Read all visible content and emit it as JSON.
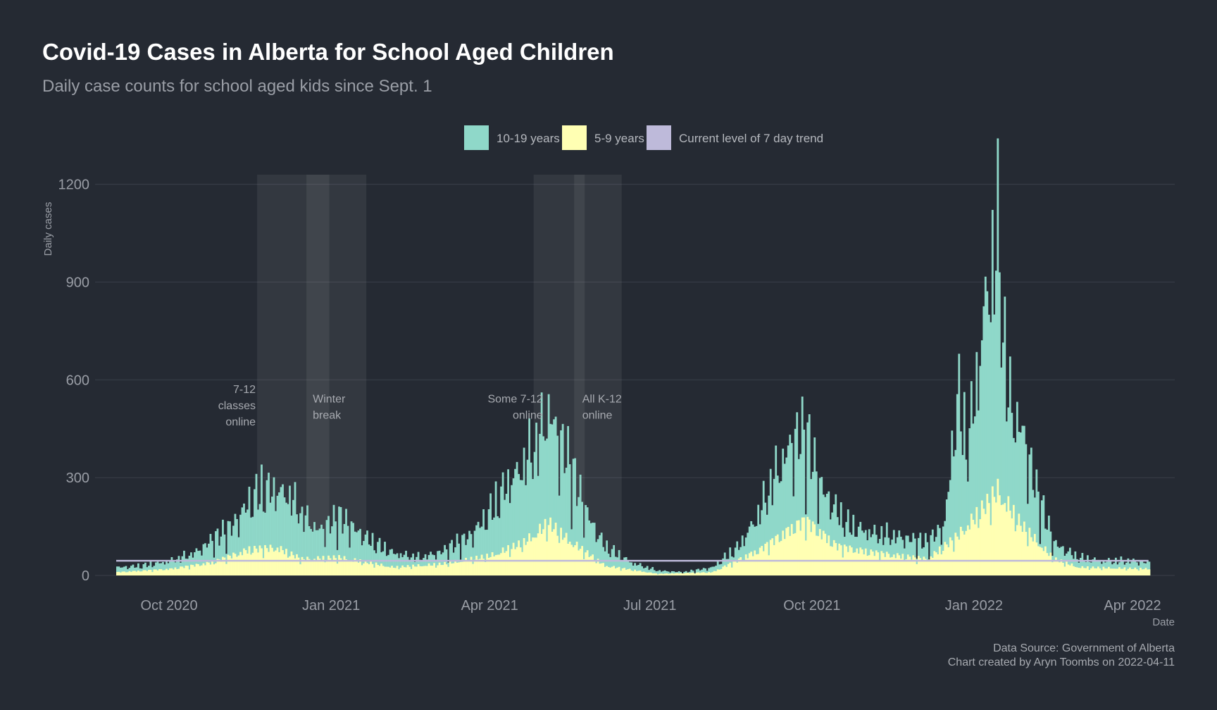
{
  "chart_data": {
    "type": "bar",
    "title": "Covid-19 Cases in Alberta for School Aged Children",
    "subtitle": "Daily case counts for school aged kids since Sept. 1",
    "xlabel": "Date",
    "ylabel": "Daily cases",
    "x_range": [
      "2020-08-20",
      "2022-04-25"
    ],
    "ylim": [
      0,
      1225
    ],
    "y_ticks": [
      0,
      300,
      600,
      900,
      1200
    ],
    "x_ticks": [
      {
        "date": "2020-10-01",
        "label": "Oct 2020"
      },
      {
        "date": "2021-01-01",
        "label": "Jan 2021"
      },
      {
        "date": "2021-04-01",
        "label": "Apr 2021"
      },
      {
        "date": "2021-07-01",
        "label": "Jul 2021"
      },
      {
        "date": "2021-10-01",
        "label": "Oct 2021"
      },
      {
        "date": "2022-01-01",
        "label": "Jan 2022"
      },
      {
        "date": "2022-04-01",
        "label": "Apr 2022"
      }
    ],
    "grid": true,
    "legend_position": "top",
    "series": [
      {
        "name": "10-19 years",
        "color": "#8fd8c9",
        "points": [
          [
            "2020-09-01",
            25
          ],
          [
            "2020-09-15",
            30
          ],
          [
            "2020-10-01",
            45
          ],
          [
            "2020-10-15",
            70
          ],
          [
            "2020-10-25",
            110
          ],
          [
            "2020-11-05",
            150
          ],
          [
            "2020-11-15",
            230
          ],
          [
            "2020-11-22",
            265
          ],
          [
            "2020-12-01",
            265
          ],
          [
            "2020-12-08",
            250
          ],
          [
            "2020-12-15",
            190
          ],
          [
            "2020-12-25",
            140
          ],
          [
            "2021-01-05",
            180
          ],
          [
            "2021-01-15",
            140
          ],
          [
            "2021-01-25",
            100
          ],
          [
            "2021-02-05",
            70
          ],
          [
            "2021-02-20",
            55
          ],
          [
            "2021-03-05",
            75
          ],
          [
            "2021-03-20",
            120
          ],
          [
            "2021-04-01",
            200
          ],
          [
            "2021-04-10",
            280
          ],
          [
            "2021-04-20",
            350
          ],
          [
            "2021-04-28",
            420
          ],
          [
            "2021-05-04",
            520
          ],
          [
            "2021-05-08",
            450
          ],
          [
            "2021-05-15",
            360
          ],
          [
            "2021-05-25",
            200
          ],
          [
            "2021-06-05",
            90
          ],
          [
            "2021-06-20",
            40
          ],
          [
            "2021-07-05",
            15
          ],
          [
            "2021-07-20",
            10
          ],
          [
            "2021-08-05",
            25
          ],
          [
            "2021-08-20",
            90
          ],
          [
            "2021-09-01",
            200
          ],
          [
            "2021-09-10",
            320
          ],
          [
            "2021-09-20",
            420
          ],
          [
            "2021-09-27",
            440
          ],
          [
            "2021-10-05",
            280
          ],
          [
            "2021-10-20",
            160
          ],
          [
            "2021-11-05",
            130
          ],
          [
            "2021-11-20",
            120
          ],
          [
            "2021-12-05",
            100
          ],
          [
            "2021-12-15",
            160
          ],
          [
            "2021-12-22",
            560
          ],
          [
            "2021-12-28",
            400
          ],
          [
            "2022-01-03",
            650
          ],
          [
            "2022-01-08",
            900
          ],
          [
            "2022-01-14",
            1050
          ],
          [
            "2022-01-20",
            550
          ],
          [
            "2022-01-28",
            450
          ],
          [
            "2022-02-05",
            260
          ],
          [
            "2022-02-15",
            100
          ],
          [
            "2022-03-01",
            55
          ],
          [
            "2022-03-15",
            45
          ],
          [
            "2022-04-01",
            45
          ],
          [
            "2022-04-10",
            40
          ]
        ]
      },
      {
        "name": "5-9 years",
        "color": "#ffffb3",
        "points": [
          [
            "2020-09-01",
            10
          ],
          [
            "2020-10-01",
            20
          ],
          [
            "2020-10-25",
            40
          ],
          [
            "2020-11-15",
            80
          ],
          [
            "2020-12-01",
            85
          ],
          [
            "2020-12-15",
            50
          ],
          [
            "2021-01-05",
            55
          ],
          [
            "2021-02-05",
            25
          ],
          [
            "2021-03-05",
            35
          ],
          [
            "2021-04-01",
            60
          ],
          [
            "2021-04-20",
            100
          ],
          [
            "2021-05-04",
            160
          ],
          [
            "2021-05-15",
            110
          ],
          [
            "2021-06-05",
            30
          ],
          [
            "2021-07-05",
            5
          ],
          [
            "2021-08-05",
            10
          ],
          [
            "2021-09-01",
            80
          ],
          [
            "2021-09-20",
            150
          ],
          [
            "2021-09-27",
            170
          ],
          [
            "2021-10-15",
            90
          ],
          [
            "2021-11-05",
            70
          ],
          [
            "2021-12-05",
            50
          ],
          [
            "2021-12-22",
            120
          ],
          [
            "2022-01-08",
            220
          ],
          [
            "2022-01-14",
            260
          ],
          [
            "2022-01-28",
            150
          ],
          [
            "2022-02-15",
            50
          ],
          [
            "2022-03-01",
            25
          ],
          [
            "2022-04-10",
            20
          ]
        ]
      },
      {
        "name": "Current level of 7 day trend",
        "color": "#bebada",
        "type": "line",
        "value": 45,
        "from": "2020-09-01",
        "to": "2022-04-10"
      }
    ],
    "shaded_periods": [
      {
        "start": "2020-11-20",
        "end": "2020-12-31"
      },
      {
        "start": "2020-12-18",
        "end": "2021-01-21"
      },
      {
        "start": "2021-04-26",
        "end": "2021-05-25"
      },
      {
        "start": "2021-05-19",
        "end": "2021-06-15"
      }
    ],
    "annotations": [
      {
        "lines": [
          "7-12",
          "classes",
          "online"
        ],
        "date": "2020-11-20",
        "y": 560,
        "align": "end"
      },
      {
        "lines": [
          "Winter",
          "break"
        ],
        "date": "2020-12-20",
        "y": 530,
        "align": "start"
      },
      {
        "lines": [
          "Some 7-12",
          "online"
        ],
        "date": "2021-05-02",
        "y": 530,
        "align": "end"
      },
      {
        "lines": [
          "All K-12",
          "online"
        ],
        "date": "2021-05-22",
        "y": 530,
        "align": "start"
      }
    ],
    "caption": [
      "Data Source: Government of Alberta",
      "Chart created by Aryn Toombs on 2022-04-11"
    ]
  }
}
